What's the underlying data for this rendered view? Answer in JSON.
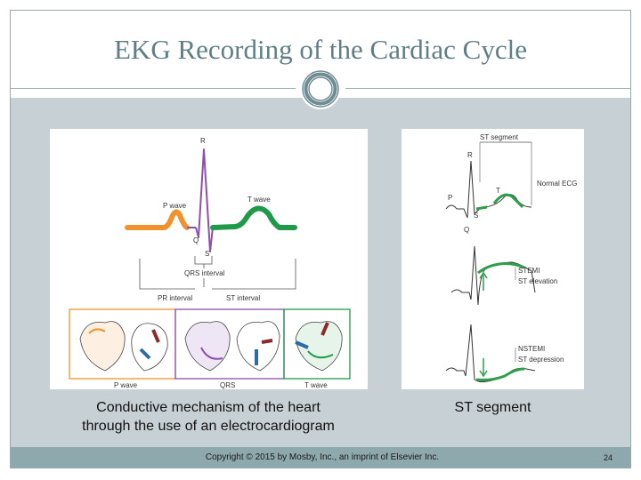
{
  "slide": {
    "title": "EKG Recording of the Cardiac Cycle",
    "caption_left_line1": "Conductive mechanism of the heart",
    "caption_left_line2": "through the use of an electrocardiogram",
    "caption_right": "ST segment",
    "copyright": "Copyright © 2015 by Mosby, Inc., an imprint of Elsevier Inc.",
    "page_number": "24"
  },
  "left_figure": {
    "labels": {
      "r": "R",
      "t_wave": "T wave",
      "p_wave": "P wave",
      "q": "Q",
      "s": "S",
      "qrs_interval": "QRS interval",
      "pr_interval": "PR interval",
      "st_interval": "ST interval",
      "bottom_p": "P wave",
      "bottom_qrs": "QRS",
      "bottom_t": "T wave"
    },
    "colors": {
      "p": "#f0922e",
      "qrs": "#8d4fae",
      "t": "#1f9a49"
    }
  },
  "right_figure": {
    "labels": {
      "st_segment": "ST segment",
      "r": "R",
      "t": "T",
      "p": "P",
      "s": "S",
      "q": "Q",
      "normal_ecg": "Normal ECG",
      "stemi": "STEMI",
      "st_elevation": "ST elevation",
      "nstemi": "NSTEMI",
      "st_depression": "ST depression"
    },
    "colors": {
      "segment": "#2d9e4a"
    }
  }
}
